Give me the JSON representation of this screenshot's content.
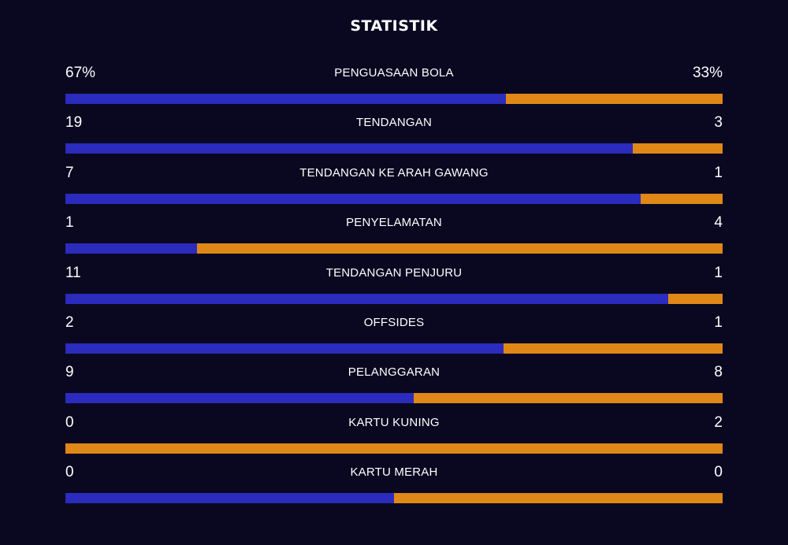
{
  "title": "STATISTIK",
  "colors": {
    "home": "#2b2bbd",
    "away": "#df8818",
    "background": "#0a0820"
  },
  "stats": [
    {
      "label": "PENGUASAAN BOLA",
      "home": "67%",
      "away": "33%",
      "home_share": 0.67
    },
    {
      "label": "TENDANGAN",
      "home": "19",
      "away": "3",
      "home_share": 0.8636
    },
    {
      "label": "TENDANGAN KE ARAH GAWANG",
      "home": "7",
      "away": "1",
      "home_share": 0.875
    },
    {
      "label": "PENYELAMATAN",
      "home": "1",
      "away": "4",
      "home_share": 0.2
    },
    {
      "label": "TENDANGAN PENJURU",
      "home": "11",
      "away": "1",
      "home_share": 0.9167
    },
    {
      "label": "OFFSIDES",
      "home": "2",
      "away": "1",
      "home_share": 0.6667
    },
    {
      "label": "PELANGGARAN",
      "home": "9",
      "away": "8",
      "home_share": 0.5294
    },
    {
      "label": "KARTU KUNING",
      "home": "0",
      "away": "2",
      "home_share": 0
    },
    {
      "label": "KARTU MERAH",
      "home": "0",
      "away": "0",
      "home_share": 0.5
    }
  ]
}
